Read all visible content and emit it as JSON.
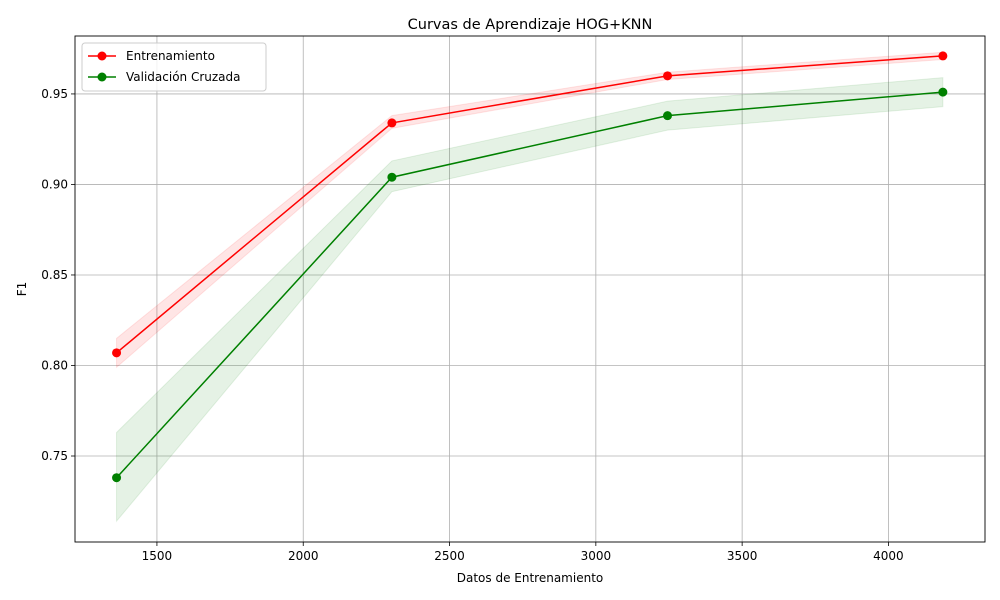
{
  "chart_data": {
    "type": "line",
    "title": "Curvas de Aprendizaje HOG+KNN",
    "xlabel": "Datos de Entrenamiento",
    "ylabel": "F1",
    "x": [
      1362,
      2303,
      3245,
      4186
    ],
    "xlim": [
      1220,
      4330
    ],
    "ylim": [
      0.7025,
      0.982
    ],
    "xticks": [
      1500,
      2000,
      2500,
      3000,
      3500,
      4000
    ],
    "yticks": [
      0.75,
      0.8,
      0.85,
      0.9,
      0.95
    ],
    "ytick_labels": [
      "0.75",
      "0.80",
      "0.85",
      "0.90",
      "0.95"
    ],
    "grid": true,
    "legend_position": "upper-left",
    "series": [
      {
        "name": "Entrenamiento",
        "color": "#ff0000",
        "band_color": "#ff0000",
        "values": [
          0.807,
          0.934,
          0.96,
          0.971
        ],
        "band_low": [
          0.799,
          0.931,
          0.958,
          0.969
        ],
        "band_high": [
          0.815,
          0.938,
          0.962,
          0.973
        ]
      },
      {
        "name": "Validación Cruzada",
        "color": "#008000",
        "band_color": "#008000",
        "values": [
          0.738,
          0.904,
          0.938,
          0.951
        ],
        "band_low": [
          0.714,
          0.896,
          0.93,
          0.943
        ],
        "band_high": [
          0.763,
          0.913,
          0.946,
          0.959
        ]
      }
    ]
  }
}
